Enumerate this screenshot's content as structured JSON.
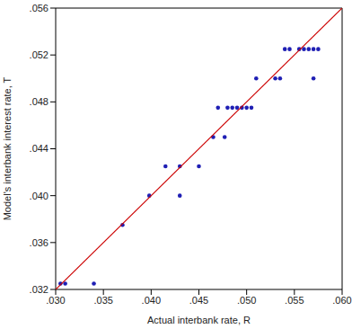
{
  "chart_data": {
    "type": "scatter",
    "x_label": "Actual interbank rate, R",
    "y_label": "Model's interbank interest rate, T",
    "xlim": [
      0.03,
      0.06
    ],
    "ylim": [
      0.032,
      0.056
    ],
    "xticks": [
      {
        "value": 0.03,
        "label": ".030"
      },
      {
        "value": 0.035,
        "label": ".035"
      },
      {
        "value": 0.04,
        "label": ".040"
      },
      {
        "value": 0.045,
        "label": ".045"
      },
      {
        "value": 0.05,
        "label": ".050"
      },
      {
        "value": 0.055,
        "label": ".055"
      },
      {
        "value": 0.06,
        "label": ".060"
      }
    ],
    "yticks": [
      {
        "value": 0.032,
        "label": ".032"
      },
      {
        "value": 0.036,
        "label": ".036"
      },
      {
        "value": 0.04,
        "label": ".040"
      },
      {
        "value": 0.044,
        "label": ".044"
      },
      {
        "value": 0.048,
        "label": ".048"
      },
      {
        "value": 0.052,
        "label": ".052"
      },
      {
        "value": 0.056,
        "label": ".056"
      }
    ],
    "grid": false,
    "series": [
      {
        "type": "scatter",
        "color": "#1f1fb4",
        "marker": "circle",
        "x": [
          0.0305,
          0.031,
          0.034,
          0.037,
          0.0398,
          0.0415,
          0.043,
          0.043,
          0.045,
          0.0465,
          0.0477,
          0.047,
          0.048,
          0.0485,
          0.049,
          0.0495,
          0.05,
          0.0505,
          0.051,
          0.053,
          0.0535,
          0.054,
          0.0545,
          0.0555,
          0.056,
          0.0565,
          0.057,
          0.0575,
          0.057
        ],
        "values": [
          0.0325,
          0.0325,
          0.0325,
          0.0375,
          0.04,
          0.0425,
          0.04,
          0.0425,
          0.0425,
          0.045,
          0.045,
          0.0475,
          0.0475,
          0.0475,
          0.0475,
          0.0475,
          0.0475,
          0.0475,
          0.05,
          0.05,
          0.05,
          0.0525,
          0.0525,
          0.0525,
          0.0525,
          0.0525,
          0.0525,
          0.0525,
          0.05
        ]
      },
      {
        "type": "line",
        "color": "#cc0000",
        "line_style": "solid",
        "x": [
          0.03,
          0.06
        ],
        "values": [
          0.032,
          0.056
        ]
      }
    ]
  }
}
